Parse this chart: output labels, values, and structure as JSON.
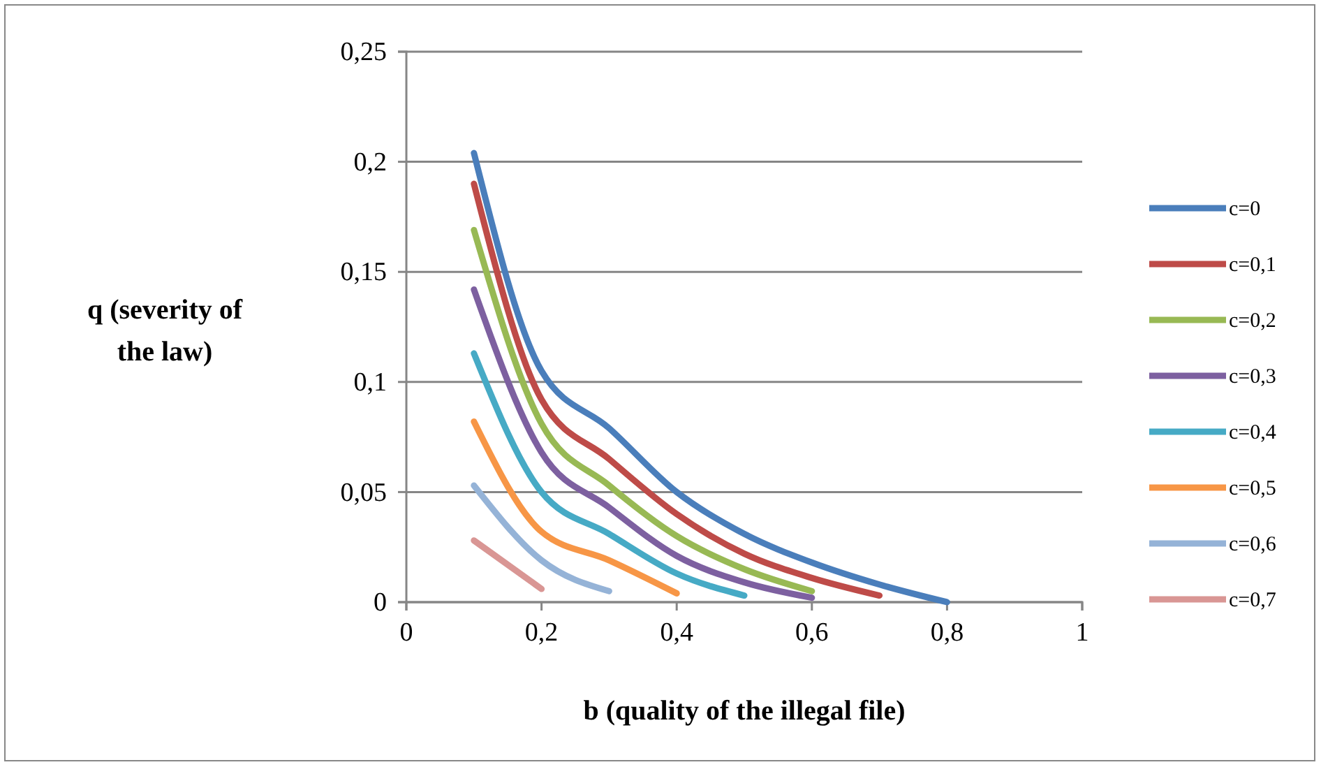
{
  "chart_data": {
    "type": "line",
    "xlabel": "b (quality of the illegal file)",
    "ylabel": "q (severity of the law)",
    "xlim": [
      0,
      1
    ],
    "xticks": [
      {
        "value": 0,
        "label": "0"
      },
      {
        "value": 0.2,
        "label": "0,2"
      },
      {
        "value": 0.4,
        "label": "0,4"
      },
      {
        "value": 0.6,
        "label": "0,6"
      },
      {
        "value": 0.8,
        "label": "0,8"
      },
      {
        "value": 1,
        "label": "1"
      }
    ],
    "ylim": [
      0,
      0.25
    ],
    "yticks": [
      {
        "value": 0,
        "label": "0"
      },
      {
        "value": 0.05,
        "label": "0,05"
      },
      {
        "value": 0.1,
        "label": "0,1"
      },
      {
        "value": 0.15,
        "label": "0,15"
      },
      {
        "value": 0.2,
        "label": "0,2"
      },
      {
        "value": 0.25,
        "label": "0,25"
      }
    ],
    "grid": "y",
    "legend": "right",
    "marker": "none",
    "line_style": "solid",
    "series": [
      {
        "name": "c=0",
        "color": "#4a7ebb",
        "x": [
          0.1,
          0.2,
          0.3,
          0.4,
          0.5,
          0.6,
          0.7,
          0.8
        ],
        "values": [
          0.204,
          0.105,
          0.079,
          0.05,
          0.031,
          0.018,
          0.008,
          0
        ]
      },
      {
        "name": "c=0,1",
        "color": "#be4b48",
        "x": [
          0.1,
          0.2,
          0.3,
          0.4,
          0.5,
          0.6,
          0.7
        ],
        "values": [
          0.19,
          0.092,
          0.065,
          0.04,
          0.022,
          0.011,
          0.003
        ]
      },
      {
        "name": "c=0,2",
        "color": "#98b954",
        "x": [
          0.1,
          0.2,
          0.3,
          0.4,
          0.5,
          0.6
        ],
        "values": [
          0.169,
          0.081,
          0.053,
          0.03,
          0.015,
          0.005
        ]
      },
      {
        "name": "c=0,3",
        "color": "#7d60a0",
        "x": [
          0.1,
          0.2,
          0.3,
          0.4,
          0.5,
          0.6
        ],
        "values": [
          0.142,
          0.068,
          0.043,
          0.021,
          0.009,
          0.002
        ]
      },
      {
        "name": "c=0,4",
        "color": "#46aac5",
        "x": [
          0.1,
          0.2,
          0.3,
          0.4,
          0.5
        ],
        "values": [
          0.113,
          0.05,
          0.031,
          0.013,
          0.003
        ]
      },
      {
        "name": "c=0,5",
        "color": "#f79646",
        "x": [
          0.1,
          0.2,
          0.3,
          0.4
        ],
        "values": [
          0.082,
          0.032,
          0.019,
          0.004
        ]
      },
      {
        "name": "c=0,6",
        "color": "#95b3d7",
        "x": [
          0.1,
          0.2,
          0.3
        ],
        "values": [
          0.053,
          0.019,
          0.005
        ]
      },
      {
        "name": "c=0,7",
        "color": "#d99694",
        "x": [
          0.1,
          0.2
        ],
        "values": [
          0.028,
          0.006
        ]
      }
    ]
  }
}
